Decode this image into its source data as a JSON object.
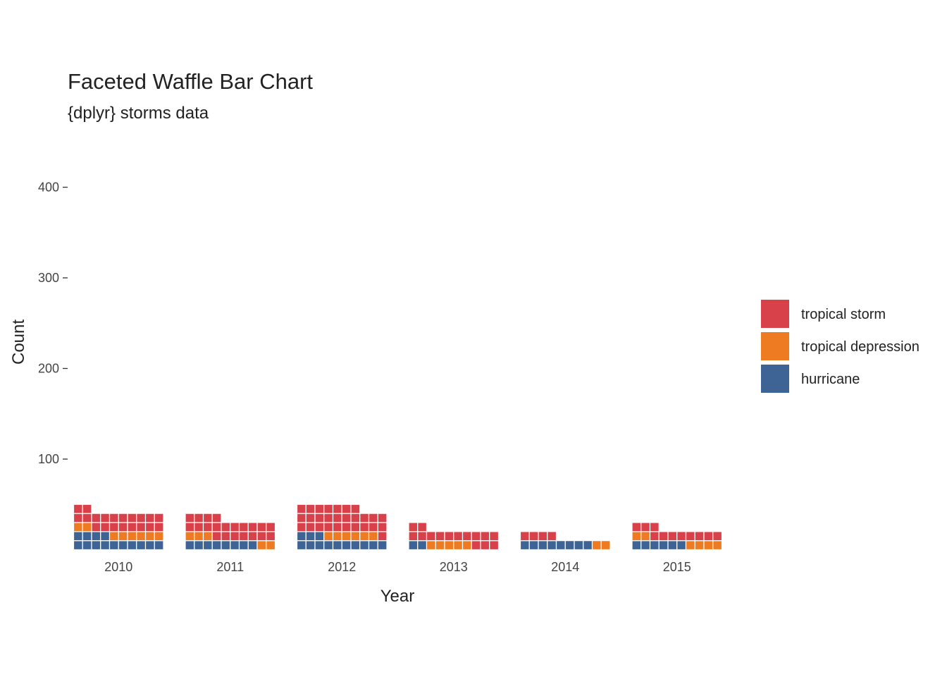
{
  "chart_data": {
    "type": "bar",
    "subtype": "waffle-stacked",
    "title": "Faceted Waffle Bar Chart",
    "subtitle": "{dplyr} storms data",
    "xlabel": "Year",
    "ylabel": "Count",
    "categories": [
      "2010",
      "2011",
      "2012",
      "2013",
      "2014",
      "2015"
    ],
    "yticks": [
      100,
      200,
      300,
      400
    ],
    "ylim": [
      0,
      480
    ],
    "units_per_cell": 1,
    "cells_per_row": 10,
    "series": [
      {
        "name": "hurricane",
        "color": "#3E6496",
        "values": [
          135,
          75,
          125,
          15,
          75,
          55
        ]
      },
      {
        "name": "tropical depression",
        "color": "#EE7B22",
        "values": [
          80,
          50,
          60,
          50,
          20,
          60
        ]
      },
      {
        "name": "tropical storm",
        "color": "#D8414A",
        "values": [
          200,
          210,
          280,
          150,
          40,
          105
        ]
      }
    ],
    "legend": {
      "position": "right",
      "items": [
        "tropical storm",
        "tropical depression",
        "hurricane"
      ]
    },
    "grid": false
  }
}
